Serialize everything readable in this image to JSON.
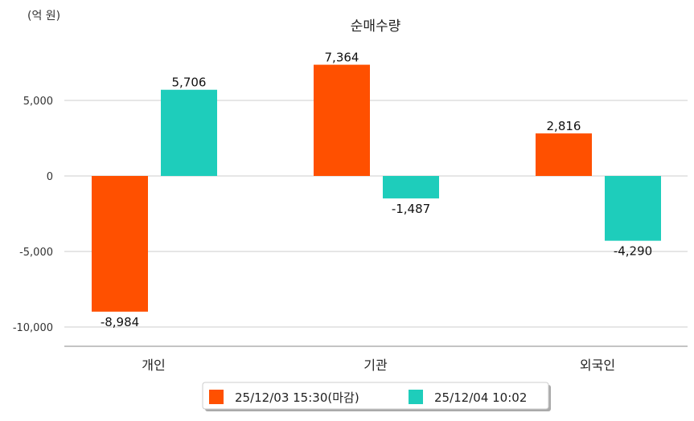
{
  "chart_data": {
    "type": "bar",
    "title": "순매수량",
    "unit_label": "(억 원)",
    "categories": [
      "개인",
      "기관",
      "외국인"
    ],
    "series": [
      {
        "name": "25/12/03 15:30(마감)",
        "color": "#ff5000",
        "values": [
          -8984,
          7364,
          2816
        ],
        "labels": [
          "-8,984",
          "7,364",
          "2,816"
        ]
      },
      {
        "name": "25/12/04 10:02",
        "color": "#1ecdbb",
        "values": [
          5706,
          -1487,
          -4290
        ],
        "labels": [
          "5,706",
          "-1,487",
          "-4,290"
        ]
      }
    ],
    "y_ticks": [
      5000,
      0,
      -5000,
      -10000
    ],
    "y_tick_labels": [
      "5,000",
      "0",
      "-5,000",
      "-10,000"
    ],
    "ylim": [
      -11280,
      10000
    ],
    "grid": true,
    "legend_position": "bottom"
  }
}
